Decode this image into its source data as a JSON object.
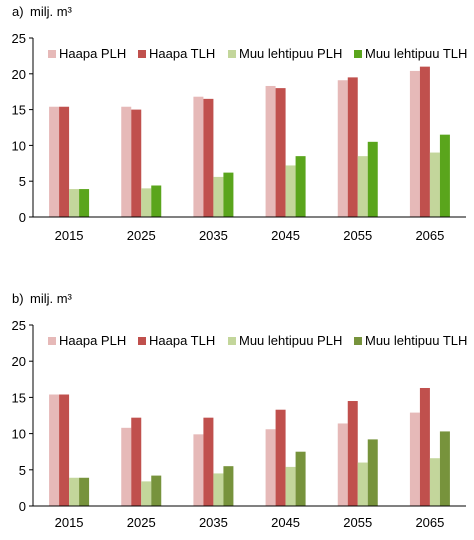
{
  "colors": {
    "haapa_plh": "#e6b9b8",
    "haapa_tlh": "#c0504d",
    "muu_plh_a": "#c3d69b",
    "muu_tlh_a": "#5aa51c",
    "muu_plh_b": "#c3d69b",
    "muu_tlh_b": "#77933c",
    "axis": "#000000",
    "grid": "none"
  },
  "chart_data": [
    {
      "type": "bar",
      "panel_label": "a)",
      "ylabel": "milj. m³",
      "ylim": [
        0,
        25
      ],
      "yticks": [
        0,
        5,
        10,
        15,
        20,
        25
      ],
      "categories": [
        "2015",
        "2025",
        "2035",
        "2045",
        "2055",
        "2065"
      ],
      "legend_placement": "top",
      "grid": false,
      "series": [
        {
          "name": "Haapa PLH",
          "color_key": "haapa_plh",
          "values": [
            15.4,
            15.4,
            16.8,
            18.3,
            19.1,
            20.4
          ]
        },
        {
          "name": "Haapa TLH",
          "color_key": "haapa_tlh",
          "values": [
            15.4,
            15.0,
            16.5,
            18.0,
            19.5,
            21.0
          ]
        },
        {
          "name": "Muu lehtipuu PLH",
          "color_key": "muu_plh_a",
          "values": [
            3.9,
            4.0,
            5.6,
            7.2,
            8.5,
            9.0
          ]
        },
        {
          "name": "Muu lehtipuu TLH",
          "color_key": "muu_tlh_a",
          "values": [
            3.9,
            4.4,
            6.2,
            8.5,
            10.5,
            11.5
          ]
        }
      ]
    },
    {
      "type": "bar",
      "panel_label": "b)",
      "ylabel": "milj. m³",
      "ylim": [
        0,
        25
      ],
      "yticks": [
        0,
        5,
        10,
        15,
        20,
        25
      ],
      "categories": [
        "2015",
        "2025",
        "2035",
        "2045",
        "2055",
        "2065"
      ],
      "legend_placement": "top",
      "grid": false,
      "series": [
        {
          "name": "Haapa PLH",
          "color_key": "haapa_plh",
          "values": [
            15.4,
            10.8,
            9.9,
            10.6,
            11.4,
            12.9
          ]
        },
        {
          "name": "Haapa TLH",
          "color_key": "haapa_tlh",
          "values": [
            15.4,
            12.2,
            12.2,
            13.3,
            14.5,
            16.3
          ]
        },
        {
          "name": "Muu lehtipuu PLH",
          "color_key": "muu_plh_b",
          "values": [
            3.9,
            3.4,
            4.5,
            5.4,
            6.0,
            6.6
          ]
        },
        {
          "name": "Muu lehtipuu TLH",
          "color_key": "muu_tlh_b",
          "values": [
            3.9,
            4.2,
            5.5,
            7.5,
            9.2,
            10.3
          ]
        }
      ]
    }
  ]
}
